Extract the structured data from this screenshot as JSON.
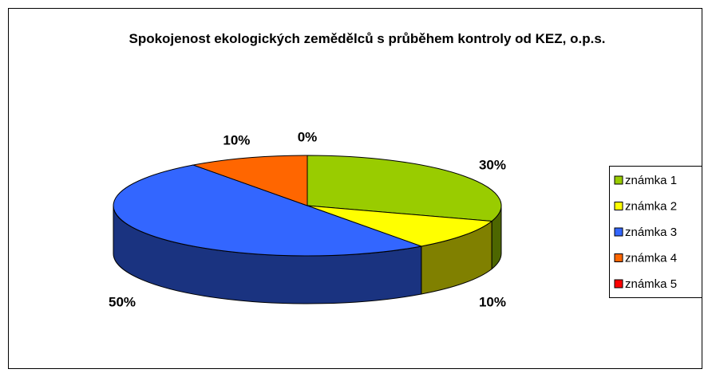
{
  "chart_data": {
    "type": "pie3d",
    "title": "Spokojenost ekologických zemědělců s průběhem kontroly od KEZ, o.p.s.",
    "categories": [
      "známka 1",
      "známka 2",
      "známka 3",
      "známka 4",
      "známka 5"
    ],
    "values": [
      30,
      10,
      50,
      10,
      0
    ],
    "value_labels": [
      "30%",
      "10%",
      "50%",
      "10%",
      "0%"
    ],
    "colors": [
      "#99cc00",
      "#ffff00",
      "#3366ff",
      "#ff6600",
      "#ff0000"
    ],
    "legend": "right"
  }
}
